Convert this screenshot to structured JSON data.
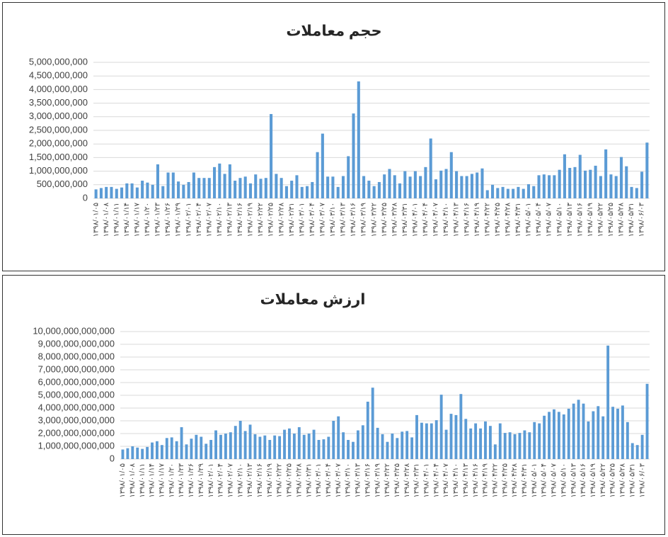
{
  "chart_data": [
    {
      "type": "bar",
      "title": "حجم معاملات",
      "color": "#5b9bd5",
      "grid": true,
      "ylim": [
        0,
        5000000000.0
      ],
      "yticks": [
        0,
        {
          "value": 500000000.0,
          "label": "500,000,000"
        },
        {
          "value": 1000000000.0,
          "label": "1,000,000,000"
        },
        {
          "value": 1500000000.0,
          "label": "1,500,000,000"
        },
        {
          "value": 2000000000.0,
          "label": "2,000,000,000"
        },
        {
          "value": 2500000000.0,
          "label": "2,500,000,000"
        },
        {
          "value": 3000000000.0,
          "label": "3,000,000,000"
        },
        {
          "value": 3500000000.0,
          "label": "3,500,000,000"
        },
        {
          "value": 4000000000.0,
          "label": "4,000,000,000"
        },
        {
          "value": 4500000000.0,
          "label": "4,500,000,000"
        },
        {
          "value": 5000000000.0,
          "label": "5,000,000,000"
        }
      ],
      "categories": [
        "۱۳۹۸/۰۱/۰۵",
        null,
        "۱۳۹۸/۰۱/۰۸",
        null,
        "۱۳۹۸/۰۱/۱۱",
        null,
        "۱۳۹۸/۰۱/۱۴",
        null,
        "۱۳۹۸/۰۱/۱۷",
        null,
        "۱۳۹۸/۰۱/۲۰",
        null,
        "۱۳۹۸/۰۱/۲۳",
        null,
        "۱۳۹۸/۰۱/۲۶",
        null,
        "۱۳۹۸/۰۱/۲۹",
        null,
        "۱۳۹۸/۰۲/۰۱",
        null,
        "۱۳۹۸/۰۲/۰۴",
        null,
        "۱۳۹۸/۰۲/۰۷",
        null,
        "۱۳۹۸/۰۲/۱۰",
        null,
        "۱۳۹۸/۰۲/۱۳",
        null,
        "۱۳۹۸/۰۲/۱۶",
        null,
        "۱۳۹۸/۰۲/۱۹",
        null,
        "۱۳۹۸/۰۲/۲۲",
        null,
        "۱۳۹۸/۰۲/۲۵",
        null,
        "۱۳۹۸/۰۲/۲۸",
        null,
        "۱۳۹۸/۰۲/۳۱",
        null,
        "۱۳۹۸/۰۳/۰۱",
        null,
        "۱۳۹۸/۰۳/۰۴",
        null,
        "۱۳۹۸/۰۳/۰۷",
        null,
        "۱۳۹۸/۰۳/۱۰",
        null,
        "۱۳۹۸/۰۳/۱۳",
        null,
        "۱۳۹۸/۰۳/۱۶",
        null,
        "۱۳۹۸/۰۳/۱۹",
        null,
        "۱۳۹۸/۰۳/۲۲",
        null,
        "۱۳۹۸/۰۳/۲۵",
        null,
        "۱۳۹۸/۰۳/۲۸",
        null,
        "۱۳۹۸/۰۳/۳۱",
        null,
        "۱۳۹۸/۰۴/۰۱",
        null,
        "۱۳۹۸/۰۴/۰۴",
        null,
        "۱۳۹۸/۰۴/۰۷",
        null,
        "۱۳۹۸/۰۴/۱۰",
        null,
        "۱۳۹۸/۰۴/۱۳",
        null,
        "۱۳۹۸/۰۴/۱۶",
        null,
        "۱۳۹۸/۰۴/۱۹",
        null,
        "۱۳۹۸/۰۴/۲۲",
        null,
        "۱۳۹۸/۰۴/۲۵",
        null,
        "۱۳۹۸/۰۴/۲۸",
        null,
        "۱۳۹۸/۰۴/۳۱",
        null,
        "۱۳۹۸/۰۵/۰۱",
        null,
        "۱۳۹۸/۰۵/۰۴",
        null,
        "۱۳۹۸/۰۵/۰۷",
        null,
        "۱۳۹۸/۰۵/۱۰",
        null,
        "۱۳۹۸/۰۵/۱۳",
        null,
        "۱۳۹۸/۰۵/۱۶",
        null,
        "۱۳۹۸/۰۵/۱۹",
        null,
        "۱۳۹۸/۰۵/۲۲",
        null,
        "۱۳۹۸/۰۵/۲۵",
        null,
        "۱۳۹۸/۰۵/۲۸",
        null,
        "۱۳۹۸/۰۵/۳۱",
        null,
        "۱۳۹۸/۰۶/۰۳",
        null
      ],
      "values": [
        330000000.0,
        380000000.0,
        420000000.0,
        420000000.0,
        350000000.0,
        400000000.0,
        550000000.0,
        550000000.0,
        400000000.0,
        650000000.0,
        580000000.0,
        500000000.0,
        1250000000.0,
        450000000.0,
        950000000.0,
        950000000.0,
        620000000.0,
        500000000.0,
        600000000.0,
        950000000.0,
        750000000.0,
        750000000.0,
        750000000.0,
        1150000000.0,
        1280000000.0,
        900000000.0,
        1250000000.0,
        650000000.0,
        750000000.0,
        800000000.0,
        550000000.0,
        880000000.0,
        720000000.0,
        750000000.0,
        3100000000.0,
        900000000.0,
        750000000.0,
        450000000.0,
        650000000.0,
        850000000.0,
        420000000.0,
        450000000.0,
        600000000.0,
        1700000000.0,
        2380000000.0,
        800000000.0,
        800000000.0,
        420000000.0,
        820000000.0,
        1550000000.0,
        3120000000.0,
        4300000000.0,
        820000000.0,
        650000000.0,
        450000000.0,
        600000000.0,
        880000000.0,
        1080000000.0,
        850000000.0,
        550000000.0,
        1000000000.0,
        800000000.0,
        1000000000.0,
        820000000.0,
        1150000000.0,
        2200000000.0,
        700000000.0,
        1020000000.0,
        1080000000.0,
        1700000000.0,
        1000000000.0,
        820000000.0,
        820000000.0,
        900000000.0,
        950000000.0,
        1100000000.0,
        300000000.0,
        500000000.0,
        380000000.0,
        420000000.0,
        350000000.0,
        350000000.0,
        420000000.0,
        350000000.0,
        520000000.0,
        450000000.0,
        850000000.0,
        880000000.0,
        850000000.0,
        850000000.0,
        1050000000.0,
        1620000000.0,
        1120000000.0,
        1150000000.0,
        1600000000.0,
        1020000000.0,
        1050000000.0,
        1200000000.0,
        820000000.0,
        1800000000.0,
        880000000.0,
        820000000.0,
        1520000000.0,
        1180000000.0,
        420000000.0,
        380000000.0,
        980000000.0,
        2050000000.0
      ]
    },
    {
      "type": "bar",
      "title": "ارزش معاملات",
      "color": "#5b9bd5",
      "grid": true,
      "ylim": [
        0,
        10000000000000.0
      ],
      "yticks": [
        0,
        {
          "value": 1000000000000.0,
          "label": "1,000,000,000,000"
        },
        {
          "value": 2000000000000.0,
          "label": "2,000,000,000,000"
        },
        {
          "value": 3000000000000.0,
          "label": "3,000,000,000,000"
        },
        {
          "value": 4000000000000.0,
          "label": "4,000,000,000,000"
        },
        {
          "value": 5000000000000.0,
          "label": "5,000,000,000,000"
        },
        {
          "value": 6000000000000.0,
          "label": "6,000,000,000,000"
        },
        {
          "value": 7000000000000.0,
          "label": "7,000,000,000,000"
        },
        {
          "value": 8000000000000.0,
          "label": "8,000,000,000,000"
        },
        {
          "value": 9000000000000.0,
          "label": "9,000,000,000,000"
        },
        {
          "value": 10000000000000.0,
          "label": "10,000,000,000,000"
        }
      ],
      "categories": [
        "۱۳۹۸/۰۱/۰۵",
        null,
        "۱۳۹۸/۰۱/۰۸",
        null,
        "۱۳۹۸/۰۱/۱۱",
        null,
        "۱۳۹۸/۰۱/۱۴",
        null,
        "۱۳۹۸/۰۱/۱۷",
        null,
        "۱۳۹۸/۰۱/۲۰",
        null,
        "۱۳۹۸/۰۱/۲۳",
        null,
        "۱۳۹۸/۰۱/۲۶",
        null,
        "۱۳۹۸/۰۱/۲۹",
        null,
        "۱۳۹۸/۰۲/۰۱",
        null,
        "۱۳۹۸/۰۲/۰۴",
        null,
        "۱۳۹۸/۰۲/۰۷",
        null,
        "۱۳۹۸/۰۲/۱۰",
        null,
        "۱۳۹۸/۰۲/۱۳",
        null,
        "۱۳۹۸/۰۲/۱۶",
        null,
        "۱۳۹۸/۰۲/۱۹",
        null,
        "۱۳۹۸/۰۲/۲۲",
        null,
        "۱۳۹۸/۰۲/۲۵",
        null,
        "۱۳۹۸/۰۲/۲۸",
        null,
        "۱۳۹۸/۰۲/۳۱",
        null,
        "۱۳۹۸/۰۳/۰۱",
        null,
        "۱۳۹۸/۰۳/۰۴",
        null,
        "۱۳۹۸/۰۳/۰۷",
        null,
        "۱۳۹۸/۰۳/۱۰",
        null,
        "۱۳۹۸/۰۳/۱۳",
        null,
        "۱۳۹۸/۰۳/۱۶",
        null,
        "۱۳۹۸/۰۳/۱۹",
        null,
        "۱۳۹۸/۰۳/۲۲",
        null,
        "۱۳۹۸/۰۳/۲۵",
        null,
        "۱۳۹۸/۰۳/۲۸",
        null,
        "۱۳۹۸/۰۳/۳۱",
        null,
        "۱۳۹۸/۰۴/۰۱",
        null,
        "۱۳۹۸/۰۴/۰۴",
        null,
        "۱۳۹۸/۰۴/۰۷",
        null,
        "۱۳۹۸/۰۴/۱۰",
        null,
        "۱۳۹۸/۰۴/۱۳",
        null,
        "۱۳۹۸/۰۴/۱۶",
        null,
        "۱۳۹۸/۰۴/۱۹",
        null,
        "۱۳۹۸/۰۴/۲۲",
        null,
        "۱۳۹۸/۰۴/۲۵",
        null,
        "۱۳۹۸/۰۴/۲۸",
        null,
        "۱۳۹۸/۰۴/۳۱",
        null,
        "۱۳۹۸/۰۵/۰۱",
        null,
        "۱۳۹۸/۰۵/۰۴",
        null,
        "۱۳۹۸/۰۵/۰۷",
        null,
        "۱۳۹۸/۰۵/۱۰",
        null,
        "۱۳۹۸/۰۵/۱۳",
        null,
        "۱۳۹۸/۰۵/۱۶",
        null,
        "۱۳۹۸/۰۵/۱۹",
        null,
        "۱۳۹۸/۰۵/۲۲",
        null,
        "۱۳۹۸/۰۵/۲۵",
        null,
        "۱۳۹۸/۰۵/۲۸",
        null,
        "۱۳۹۸/۰۵/۳۱",
        null,
        "۱۳۹۸/۰۶/۰۳",
        null
      ],
      "values": [
        750000000000.0,
        850000000000.0,
        1000000000000.0,
        900000000000.0,
        800000000000.0,
        950000000000.0,
        1300000000000.0,
        1400000000000.0,
        1100000000000.0,
        1650000000000.0,
        1700000000000.0,
        1400000000000.0,
        2500000000000.0,
        1150000000000.0,
        1600000000000.0,
        1900000000000.0,
        1750000000000.0,
        1200000000000.0,
        1500000000000.0,
        2250000000000.0,
        1900000000000.0,
        2000000000000.0,
        2100000000000.0,
        2600000000000.0,
        3000000000000.0,
        2200000000000.0,
        2700000000000.0,
        1950000000000.0,
        1750000000000.0,
        1850000000000.0,
        1500000000000.0,
        1850000000000.0,
        1800000000000.0,
        2300000000000.0,
        2400000000000.0,
        2000000000000.0,
        2500000000000.0,
        1900000000000.0,
        2000000000000.0,
        2300000000000.0,
        1500000000000.0,
        1550000000000.0,
        1750000000000.0,
        3000000000000.0,
        3350000000000.0,
        2100000000000.0,
        1500000000000.0,
        1350000000000.0,
        2250000000000.0,
        2650000000000.0,
        4500000000000.0,
        5600000000000.0,
        2450000000000.0,
        1950000000000.0,
        1350000000000.0,
        2000000000000.0,
        1650000000000.0,
        2150000000000.0,
        2200000000000.0,
        1700000000000.0,
        3450000000000.0,
        2850000000000.0,
        2800000000000.0,
        2800000000000.0,
        3050000000000.0,
        5050000000000.0,
        2300000000000.0,
        3550000000000.0,
        3450000000000.0,
        5100000000000.0,
        3150000000000.0,
        2400000000000.0,
        2800000000000.0,
        2400000000000.0,
        2950000000000.0,
        2600000000000.0,
        1150000000000.0,
        2800000000000.0,
        2050000000000.0,
        2100000000000.0,
        1950000000000.0,
        2050000000000.0,
        2250000000000.0,
        2100000000000.0,
        2900000000000.0,
        2800000000000.0,
        3400000000000.0,
        3700000000000.0,
        3900000000000.0,
        3700000000000.0,
        3500000000000.0,
        3950000000000.0,
        4350000000000.0,
        4650000000000.0,
        4350000000000.0,
        2950000000000.0,
        3750000000000.0,
        4150000000000.0,
        3350000000000.0,
        8900000000000.0,
        4100000000000.0,
        3950000000000.0,
        4200000000000.0,
        2900000000000.0,
        1250000000000.0,
        1100000000000.0,
        1900000000000.0,
        5900000000000.0
      ]
    }
  ]
}
